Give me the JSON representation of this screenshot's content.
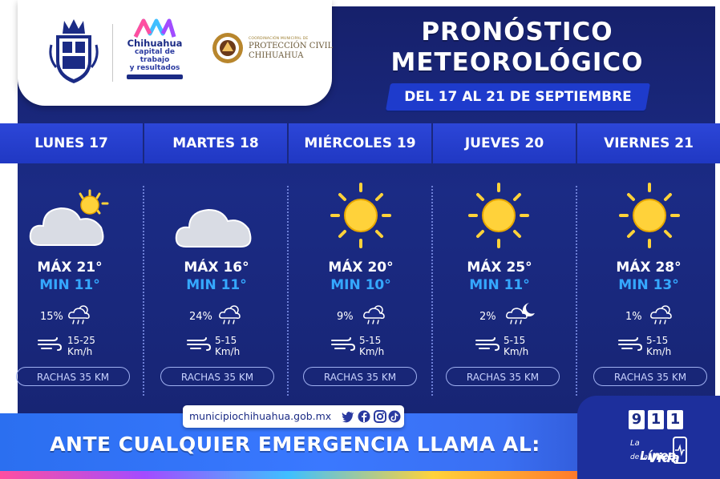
{
  "header": {
    "logo_city_name": "Chihuahua",
    "logo_slogan_line1": "capital de trabajo",
    "logo_slogan_line2": "y resultados",
    "logo_pc_small": "COORDINACIÓN MUNICIPAL DE",
    "logo_pc_line1": "PROTECCIÓN CIVIL",
    "logo_pc_line2": "CHIHUAHUA",
    "title_line1": "PRONÓSTICO",
    "title_line2": "METEOROLÓGICO",
    "date_range": "DEL 17 AL 21 DE SEPTIEMBRE"
  },
  "days": [
    {
      "name": "LUNES 17",
      "icon": "cloud-sun-icon",
      "max": "MÁX 21°",
      "min": "MIN 11°",
      "rain_pct": "15%",
      "rain_icon": "rain-cloud-sun-icon",
      "wind_speed": "15-25",
      "wind_unit": "Km/h",
      "gusts": "RACHAS 35 KM"
    },
    {
      "name": "MARTES 18",
      "icon": "cloud-icon",
      "max": "MÁX 16°",
      "min": "MIN 11°",
      "rain_pct": "24%",
      "rain_icon": "rain-cloud-sun-icon",
      "wind_speed": "5-15",
      "wind_unit": "Km/h",
      "gusts": "RACHAS 35 KM"
    },
    {
      "name": "MIÉRCOLES 19",
      "icon": "sun-icon",
      "max": "MÁX 20°",
      "min": "MIN 10°",
      "rain_pct": "9%",
      "rain_icon": "rain-cloud-sun-icon",
      "wind_speed": "5-15",
      "wind_unit": "Km/h",
      "gusts": "RACHAS 35 KM"
    },
    {
      "name": "JUEVES 20",
      "icon": "sun-icon",
      "max": "MÁX 25°",
      "min": "MIN 11°",
      "rain_pct": "2%",
      "rain_icon": "rain-cloud-moon-icon",
      "wind_speed": "5-15",
      "wind_unit": "Km/h",
      "gusts": "RACHAS 35 KM"
    },
    {
      "name": "VIERNES 21",
      "icon": "sun-icon",
      "max": "MÁX 28°",
      "min": "MIN 13°",
      "rain_pct": "1%",
      "rain_icon": "rain-cloud-sun-icon",
      "wind_speed": "5-15",
      "wind_unit": "Km/h",
      "gusts": "RACHAS 35 KM"
    }
  ],
  "footer": {
    "website": "municipiochihuahua.gob.mx",
    "social_icons": [
      "twitter-icon",
      "facebook-icon",
      "instagram-icon",
      "tiktok-icon"
    ],
    "emergency_text": "ANTE CUALQUIER EMERGENCIA LLAMA AL:",
    "number_digits": [
      "9",
      "1",
      "1"
    ],
    "line_text_1": "La",
    "line_text_2": "Línea",
    "line_text_3": "de la",
    "line_text_4": "Vida"
  },
  "colors": {
    "background": "#1b2b85",
    "header_band": "#2c46d8",
    "min_temp": "#35a8ff",
    "sun": "#ffd23a",
    "bottom_band": "#3a78ff"
  }
}
